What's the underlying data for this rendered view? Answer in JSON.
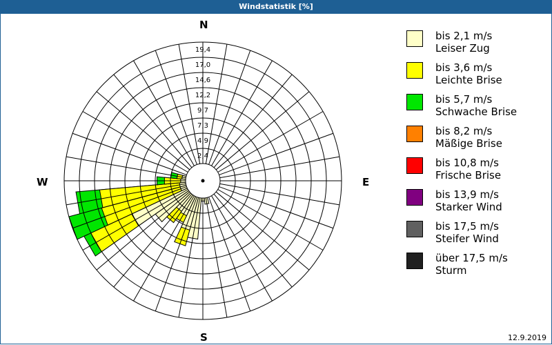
{
  "window": {
    "title": "Windstatistik [%]"
  },
  "compass": {
    "N": "N",
    "E": "E",
    "S": "S",
    "W": "W"
  },
  "footer": {
    "date": "12.9.2019"
  },
  "legend": [
    {
      "speed": "bis 2,1 m/s",
      "name": "Leiser Zug",
      "color": "#ffffc8"
    },
    {
      "speed": "bis 3,6 m/s",
      "name": "Leichte Brise",
      "color": "#ffff00"
    },
    {
      "speed": "bis 5,7 m/s",
      "name": "Schwache Brise",
      "color": "#00e600"
    },
    {
      "speed": "bis 8,2 m/s",
      "name": "Mäßige Brise",
      "color": "#ff8000"
    },
    {
      "speed": "bis 10,8 m/s",
      "name": "Frische Brise",
      "color": "#ff0000"
    },
    {
      "speed": "bis 13,9 m/s",
      "name": "Starker Wind",
      "color": "#800080"
    },
    {
      "speed": "bis 17,5 m/s",
      "name": "Steifer Wind",
      "color": "#606060"
    },
    {
      "speed": "über 17,5 m/s",
      "name": "Sturm",
      "color": "#202020"
    }
  ],
  "chart_data": {
    "type": "wind-rose",
    "title": "Windstatistik [%]",
    "radial_unit": "%",
    "radial_ticks": [
      "2,4",
      "4,9",
      "7,3",
      "9,7",
      "12,2",
      "14,6",
      "17,0",
      "19,4"
    ],
    "radial_max": 19.4,
    "sector_width_deg": 10,
    "directions": [
      "N",
      "E",
      "S",
      "W"
    ],
    "grid": true,
    "legend_position": "right",
    "series_names": [
      "Leiser Zug",
      "Leichte Brise",
      "Schwache Brise",
      "Mäßige Brise",
      "Frische Brise",
      "Starker Wind",
      "Steifer Wind",
      "Sturm"
    ],
    "sectors": [
      {
        "dir_deg": 170,
        "cumulative": [
          1.0,
          1.0,
          1.0,
          1.0,
          1.0,
          1.0,
          1.0,
          1.0
        ]
      },
      {
        "dir_deg": 180,
        "cumulative": [
          0.5,
          0.5,
          0.5,
          0.5,
          0.5,
          0.5,
          0.5,
          0.5
        ]
      },
      {
        "dir_deg": 190,
        "cumulative": [
          6.6,
          6.6,
          6.6,
          6.6,
          6.6,
          6.6,
          6.6,
          6.6
        ]
      },
      {
        "dir_deg": 200,
        "cumulative": [
          5.4,
          8.0,
          8.0,
          8.0,
          8.0,
          8.0,
          8.0,
          8.0
        ]
      },
      {
        "dir_deg": 210,
        "cumulative": [
          3.4,
          4.6,
          4.6,
          4.6,
          4.6,
          4.6,
          4.6,
          4.6
        ]
      },
      {
        "dir_deg": 220,
        "cumulative": [
          3.2,
          5.4,
          5.4,
          5.4,
          5.4,
          5.4,
          5.4,
          5.4
        ]
      },
      {
        "dir_deg": 230,
        "cumulative": [
          6.5,
          6.5,
          6.5,
          6.5,
          6.5,
          6.5,
          6.5,
          6.5
        ]
      },
      {
        "dir_deg": 240,
        "cumulative": [
          9.8,
          17.0,
          18.2,
          18.2,
          18.2,
          18.2,
          18.2,
          18.2
        ]
      },
      {
        "dir_deg": 250,
        "cumulative": [
          1.0,
          14.0,
          19.4,
          19.4,
          19.4,
          19.4,
          19.4,
          19.4
        ]
      },
      {
        "dir_deg": 260,
        "cumulative": [
          1.0,
          13.8,
          17.6,
          17.6,
          17.6,
          17.6,
          17.6,
          17.6
        ]
      },
      {
        "dir_deg": 270,
        "cumulative": [
          0.8,
          3.4,
          4.6,
          4.6,
          4.6,
          4.6,
          4.6,
          4.6
        ]
      },
      {
        "dir_deg": 280,
        "cumulative": [
          0.6,
          1.4,
          2.4,
          2.4,
          2.4,
          2.4,
          2.4,
          2.4
        ]
      }
    ]
  }
}
